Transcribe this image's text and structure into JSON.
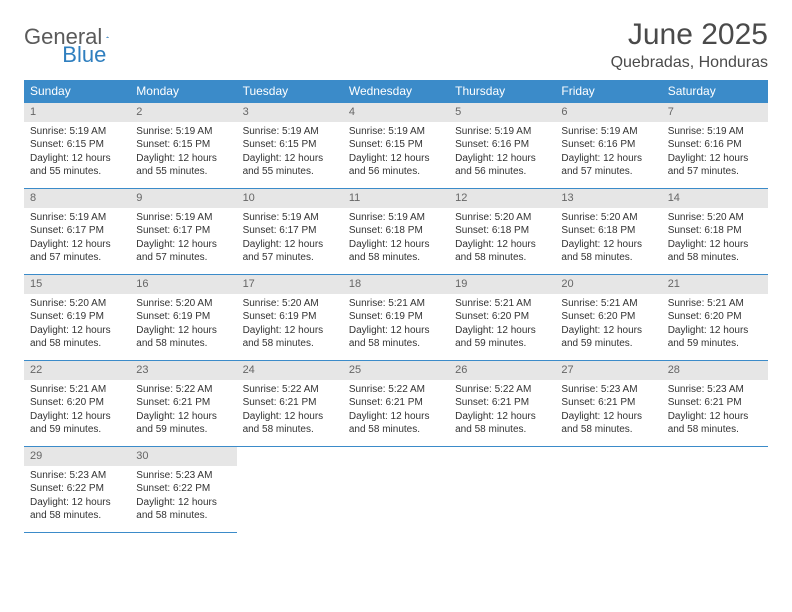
{
  "logo": {
    "gray": "General",
    "blue": "Blue"
  },
  "title": "June 2025",
  "location": "Quebradas, Honduras",
  "header_bg": "#3b8bc9",
  "header_fg": "#ffffff",
  "daynum_bg": "#e6e6e6",
  "rule_color": "#3b8bc9",
  "text_color": "#333333",
  "columns": [
    "Sunday",
    "Monday",
    "Tuesday",
    "Wednesday",
    "Thursday",
    "Friday",
    "Saturday"
  ],
  "weeks": [
    [
      {
        "n": "1",
        "sr": "5:19 AM",
        "ss": "6:15 PM",
        "dl": "12 hours and 55 minutes."
      },
      {
        "n": "2",
        "sr": "5:19 AM",
        "ss": "6:15 PM",
        "dl": "12 hours and 55 minutes."
      },
      {
        "n": "3",
        "sr": "5:19 AM",
        "ss": "6:15 PM",
        "dl": "12 hours and 55 minutes."
      },
      {
        "n": "4",
        "sr": "5:19 AM",
        "ss": "6:15 PM",
        "dl": "12 hours and 56 minutes."
      },
      {
        "n": "5",
        "sr": "5:19 AM",
        "ss": "6:16 PM",
        "dl": "12 hours and 56 minutes."
      },
      {
        "n": "6",
        "sr": "5:19 AM",
        "ss": "6:16 PM",
        "dl": "12 hours and 57 minutes."
      },
      {
        "n": "7",
        "sr": "5:19 AM",
        "ss": "6:16 PM",
        "dl": "12 hours and 57 minutes."
      }
    ],
    [
      {
        "n": "8",
        "sr": "5:19 AM",
        "ss": "6:17 PM",
        "dl": "12 hours and 57 minutes."
      },
      {
        "n": "9",
        "sr": "5:19 AM",
        "ss": "6:17 PM",
        "dl": "12 hours and 57 minutes."
      },
      {
        "n": "10",
        "sr": "5:19 AM",
        "ss": "6:17 PM",
        "dl": "12 hours and 57 minutes."
      },
      {
        "n": "11",
        "sr": "5:19 AM",
        "ss": "6:18 PM",
        "dl": "12 hours and 58 minutes."
      },
      {
        "n": "12",
        "sr": "5:20 AM",
        "ss": "6:18 PM",
        "dl": "12 hours and 58 minutes."
      },
      {
        "n": "13",
        "sr": "5:20 AM",
        "ss": "6:18 PM",
        "dl": "12 hours and 58 minutes."
      },
      {
        "n": "14",
        "sr": "5:20 AM",
        "ss": "6:18 PM",
        "dl": "12 hours and 58 minutes."
      }
    ],
    [
      {
        "n": "15",
        "sr": "5:20 AM",
        "ss": "6:19 PM",
        "dl": "12 hours and 58 minutes."
      },
      {
        "n": "16",
        "sr": "5:20 AM",
        "ss": "6:19 PM",
        "dl": "12 hours and 58 minutes."
      },
      {
        "n": "17",
        "sr": "5:20 AM",
        "ss": "6:19 PM",
        "dl": "12 hours and 58 minutes."
      },
      {
        "n": "18",
        "sr": "5:21 AM",
        "ss": "6:19 PM",
        "dl": "12 hours and 58 minutes."
      },
      {
        "n": "19",
        "sr": "5:21 AM",
        "ss": "6:20 PM",
        "dl": "12 hours and 59 minutes."
      },
      {
        "n": "20",
        "sr": "5:21 AM",
        "ss": "6:20 PM",
        "dl": "12 hours and 59 minutes."
      },
      {
        "n": "21",
        "sr": "5:21 AM",
        "ss": "6:20 PM",
        "dl": "12 hours and 59 minutes."
      }
    ],
    [
      {
        "n": "22",
        "sr": "5:21 AM",
        "ss": "6:20 PM",
        "dl": "12 hours and 59 minutes."
      },
      {
        "n": "23",
        "sr": "5:22 AM",
        "ss": "6:21 PM",
        "dl": "12 hours and 59 minutes."
      },
      {
        "n": "24",
        "sr": "5:22 AM",
        "ss": "6:21 PM",
        "dl": "12 hours and 58 minutes."
      },
      {
        "n": "25",
        "sr": "5:22 AM",
        "ss": "6:21 PM",
        "dl": "12 hours and 58 minutes."
      },
      {
        "n": "26",
        "sr": "5:22 AM",
        "ss": "6:21 PM",
        "dl": "12 hours and 58 minutes."
      },
      {
        "n": "27",
        "sr": "5:23 AM",
        "ss": "6:21 PM",
        "dl": "12 hours and 58 minutes."
      },
      {
        "n": "28",
        "sr": "5:23 AM",
        "ss": "6:21 PM",
        "dl": "12 hours and 58 minutes."
      }
    ],
    [
      {
        "n": "29",
        "sr": "5:23 AM",
        "ss": "6:22 PM",
        "dl": "12 hours and 58 minutes."
      },
      {
        "n": "30",
        "sr": "5:23 AM",
        "ss": "6:22 PM",
        "dl": "12 hours and 58 minutes."
      },
      null,
      null,
      null,
      null,
      null
    ]
  ],
  "labels": {
    "sunrise": "Sunrise: ",
    "sunset": "Sunset: ",
    "daylight": "Daylight: "
  }
}
